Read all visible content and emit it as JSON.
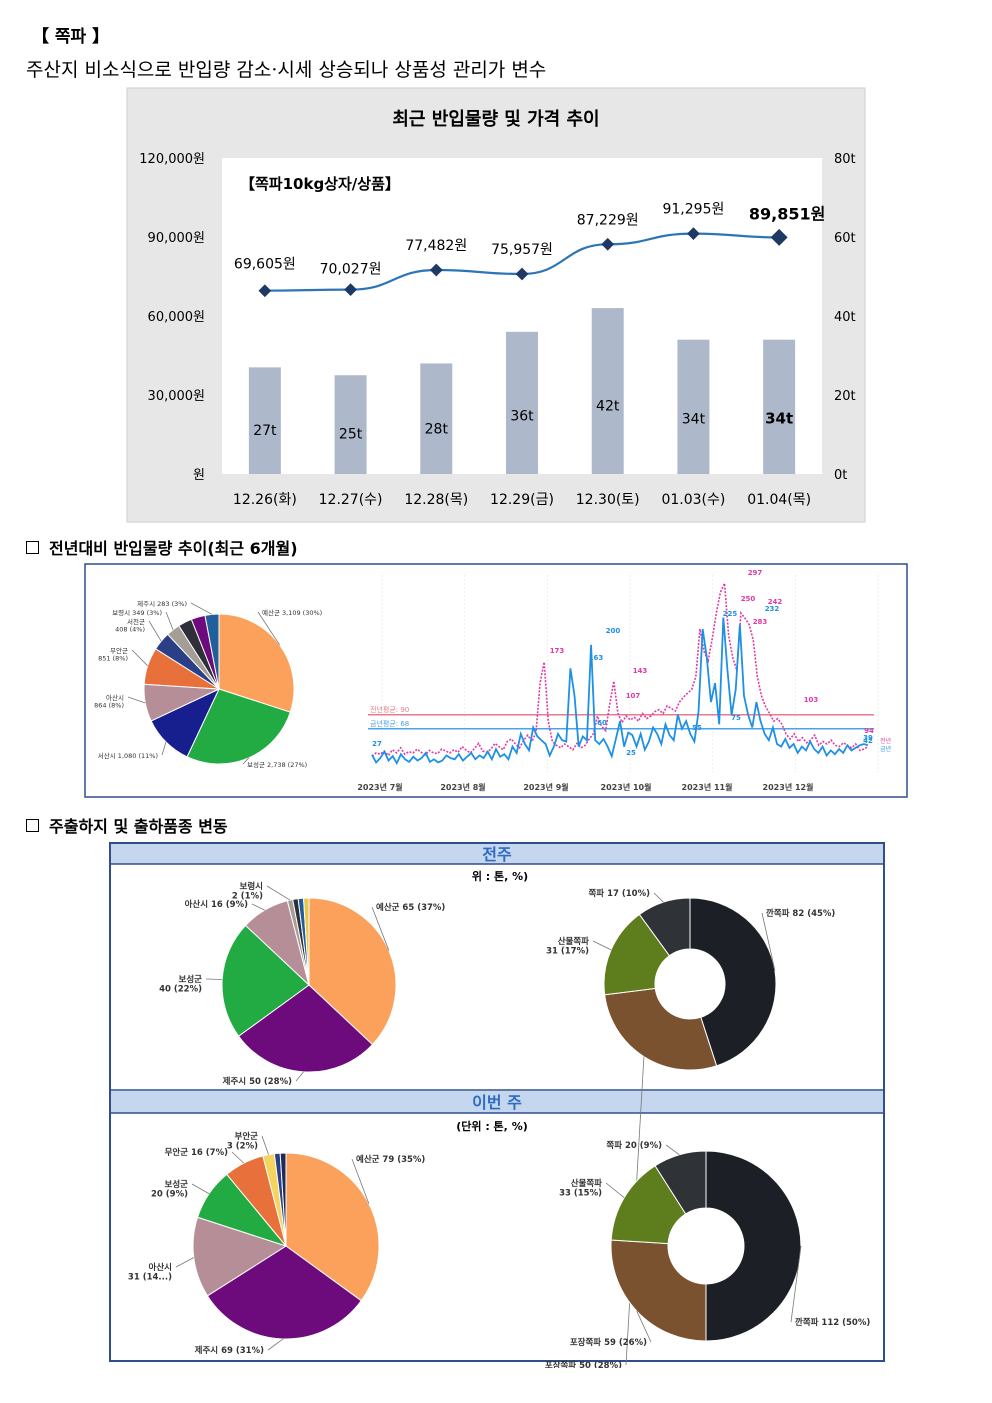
{
  "header": {
    "title": "【 쪽파 】",
    "subtitle": "주산지 비소식으로 반입량 감소·시세 상승되나 상품성 관리가 변수"
  },
  "sections": {
    "trend": "전년대비 반입물량 추이(최근 6개월)",
    "origin": "주출하지 및 출하품종 변동"
  },
  "chart_data": [
    {
      "id": "price-volume",
      "type": "bar+line",
      "title": "최근 반입물량 및 가격 추이",
      "product_label": "【쪽파10kg상자/상품】",
      "categories": [
        "12.26(화)",
        "12.27(수)",
        "12.28(목)",
        "12.29(금)",
        "12.30(토)",
        "01.03(수)",
        "01.04(목)"
      ],
      "price_values": [
        69605,
        70027,
        77482,
        75957,
        87229,
        91295,
        89851
      ],
      "price_labels": [
        "69,605원",
        "70,027원",
        "77,482원",
        "75,957원",
        "87,229원",
        "91,295원",
        "89,851원"
      ],
      "volume_values": [
        27,
        25,
        28,
        36,
        42,
        34,
        34
      ],
      "volume_labels": [
        "27t",
        "25t",
        "28t",
        "36t",
        "42t",
        "34t",
        "34t"
      ],
      "y_left_ticks": [
        "120,000원",
        "90,000원",
        "60,000원",
        "30,000원",
        "원"
      ],
      "y_left_range": [
        0,
        120000
      ],
      "y_right_ticks": [
        "80t",
        "60t",
        "40t",
        "20t",
        "0t"
      ],
      "y_right_range": [
        0,
        80
      ],
      "colors": {
        "bar": "#adb9ca",
        "line": "#2e75b6",
        "marker": "#1f3864",
        "background": "#e7e7e7"
      }
    },
    {
      "id": "origin-share-6m",
      "type": "pie",
      "slices": [
        {
          "label": "예산군 3,109 (30%)",
          "value": 30,
          "color": "#fba15b"
        },
        {
          "label": "보성군 2,738 (27%)",
          "value": 27,
          "color": "#22ab42"
        },
        {
          "label": "서산시 1,080 (11%)",
          "value": 11,
          "color": "#171f8f"
        },
        {
          "label": "아산시 864 (8%)",
          "value": 8,
          "color": "#b68e98"
        },
        {
          "label": "무안군 851 (8%)",
          "value": 8,
          "color": "#e8703a"
        },
        {
          "label": "서천군 408 (4%)",
          "value": 4,
          "color": "#2a3f85"
        },
        {
          "label": "보령시 349 (3%)",
          "value": 3,
          "color": "#a49e96"
        },
        {
          "label": "",
          "value": 3,
          "color": "#2f2f3a"
        },
        {
          "label": "",
          "value": 3,
          "color": "#6d0a7c"
        },
        {
          "label": "제주시 283 (3%)",
          "value": 3,
          "color": "#1e5f9c"
        }
      ]
    },
    {
      "id": "daily-volume-6m",
      "type": "line",
      "x_ticks": [
        "2023년 7월",
        "2023년 8월",
        "2023년 9월",
        "2023년 10월",
        "2023년 11월",
        "2023년 12월"
      ],
      "avg_prev": {
        "label": "전년평균: 90",
        "value": 90,
        "color": "#e87a8c"
      },
      "avg_curr": {
        "label": "금년평균: 68",
        "value": 68,
        "color": "#4aa3e8"
      },
      "series": [
        {
          "name": "전년",
          "color": "#e23aa3",
          "values": [
            25,
            30,
            28,
            33,
            26,
            35,
            30,
            38,
            28,
            32,
            30,
            36,
            31,
            27,
            34,
            30,
            29,
            36,
            33,
            30,
            35,
            31,
            40,
            34,
            30,
            37,
            45,
            33,
            31,
            36,
            45,
            40,
            35,
            48,
            52,
            44,
            38,
            50,
            58,
            48,
            62,
            140,
            173,
            80,
            48,
            42,
            38,
            44,
            40,
            35,
            45,
            38,
            42,
            52,
            60,
            88,
            72,
            65,
            107,
            143,
            92,
            78,
            88,
            82,
            86,
            80,
            92,
            84,
            88,
            95,
            98,
            92,
            104,
            100,
            96,
            110,
            118,
            124,
            130,
            150,
            225,
            190,
            175,
            210,
            250,
            283,
            297,
            215,
            180,
            160,
            250,
            242,
            232,
            208,
            150,
            120,
            103,
            92,
            80,
            84,
            75,
            60,
            52,
            60,
            48,
            54,
            46,
            50,
            58,
            42,
            48,
            44,
            50,
            42,
            40,
            46,
            42,
            38,
            44,
            34,
            36,
            40
          ]
        },
        {
          "name": "금년",
          "color": "#1e90e6",
          "values": [
            27,
            15,
            22,
            32,
            18,
            25,
            14,
            28,
            20,
            16,
            24,
            18,
            22,
            30,
            16,
            20,
            15,
            18,
            26,
            22,
            20,
            28,
            18,
            24,
            30,
            20,
            26,
            22,
            32,
            20,
            36,
            24,
            28,
            20,
            40,
            30,
            60,
            44,
            34,
            70,
            56,
            50,
            44,
            26,
            40,
            60,
            50,
            48,
            163,
            120,
            40,
            56,
            50,
            200,
            50,
            44,
            52,
            40,
            25,
            52,
            80,
            40,
            62,
            58,
            40,
            60,
            35,
            48,
            70,
            60,
            44,
            75,
            58,
            50,
            90,
            68,
            80,
            60,
            48,
            95,
            225,
            180,
            110,
            140,
            75,
            243,
            160,
            90,
            130,
            232,
            120,
            90,
            70,
            110,
            80,
            60,
            50,
            70,
            44,
            40,
            52,
            38,
            44,
            30,
            40,
            34,
            48,
            36,
            30,
            40,
            26,
            34,
            28,
            36,
            30,
            42,
            34,
            38,
            42,
            44,
            42
          ]
        }
      ],
      "annotations": [
        "27",
        "173",
        "163",
        "200",
        "143",
        "107",
        "225",
        "297",
        "283",
        "250",
        "242",
        "232",
        "103",
        "94",
        "42",
        "39",
        "60",
        "25",
        "55",
        "75"
      ],
      "legend_labels": [
        "전년",
        "금년"
      ]
    },
    {
      "id": "last-week-origin",
      "type": "pie",
      "panel": "전주",
      "unit": "위 : 톤, %)",
      "slices": [
        {
          "label": "예산군 65 (37%)",
          "value": 37,
          "color": "#fba15b"
        },
        {
          "label": "제주시 50 (28%)",
          "value": 28,
          "color": "#6d0a7c"
        },
        {
          "label": "보성군 40 (22%)",
          "value": 22,
          "color": "#22ab42"
        },
        {
          "label": "아산시 16 (9%)",
          "value": 9,
          "color": "#b68e98"
        },
        {
          "label": "보령시 2 (1%)",
          "value": 1,
          "color": "#a49e96"
        },
        {
          "label": "",
          "value": 1,
          "color": "#2f2f3a"
        },
        {
          "label": "",
          "value": 1,
          "color": "#1e5f9c"
        },
        {
          "label": "",
          "value": 1,
          "color": "#e8c84a"
        }
      ]
    },
    {
      "id": "last-week-variety",
      "type": "donut",
      "slices": [
        {
          "label": "깐쪽파 82 (45%)",
          "value": 45,
          "color": "#1c1f26"
        },
        {
          "label": "포장쪽파 50 (28%)",
          "value": 28,
          "color": "#7a5230"
        },
        {
          "label": "산물쪽파 31 (17%)",
          "value": 17,
          "color": "#5e7d1c"
        },
        {
          "label": "쪽파 17 (10%)",
          "value": 10,
          "color": "#2f3237"
        }
      ]
    },
    {
      "id": "this-week-origin",
      "type": "pie",
      "panel": "이번 주",
      "unit": "(단위 : 톤, %)",
      "slices": [
        {
          "label": "예산군 79 (35%)",
          "value": 35,
          "color": "#fba15b"
        },
        {
          "label": "제주시 69 (31%)",
          "value": 31,
          "color": "#6d0a7c"
        },
        {
          "label": "아산시 31 (14...)",
          "value": 14,
          "color": "#b68e98"
        },
        {
          "label": "보성군 20 (9%)",
          "value": 9,
          "color": "#22ab42"
        },
        {
          "label": "무안군 16 (7%)",
          "value": 7,
          "color": "#e8703a"
        },
        {
          "label": "부안군 3 (2%)",
          "value": 2,
          "color": "#f4d35e"
        },
        {
          "label": "",
          "value": 1,
          "color": "#2a3f85"
        },
        {
          "label": "",
          "value": 1,
          "color": "#1e2a5a"
        }
      ]
    },
    {
      "id": "this-week-variety",
      "type": "donut",
      "slices": [
        {
          "label": "깐쪽파 112 (50%)",
          "value": 50,
          "color": "#1c1f26"
        },
        {
          "label": "포장쪽파 59 (26%)",
          "value": 26,
          "color": "#7a5230"
        },
        {
          "label": "산물쪽파 33 (15%)",
          "value": 15,
          "color": "#5e7d1c"
        },
        {
          "label": "쪽파 20 (9%)",
          "value": 9,
          "color": "#2f3237"
        }
      ]
    }
  ]
}
